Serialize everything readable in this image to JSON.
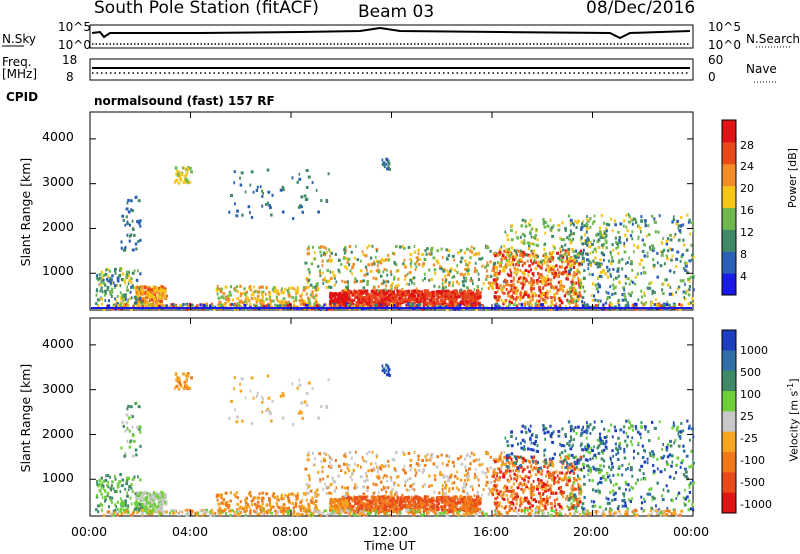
{
  "header": {
    "station": "South Pole Station (fitACF)",
    "beam": "Beam 03",
    "date": "08/Dec/2016"
  },
  "mini_panels": {
    "nsky_label": "N.Sky",
    "nsky_ticks": [
      "10^5",
      "10^0"
    ],
    "nsearch_label": "N.Search",
    "nsearch_ticks": [
      "10^5",
      "10^0"
    ],
    "freq_label": "Freq.",
    "freq_unit": "[MHz]",
    "freq_ticks": [
      "18",
      "8"
    ],
    "nave_label": "Nave",
    "nave_ticks": [
      "60",
      "0"
    ],
    "cpid_label": "CPID",
    "cpid_value": "normalsound (fast) 157 RF"
  },
  "chart_data": [
    {
      "type": "heatmap",
      "title": "",
      "xlabel": "Time UT",
      "ylabel": "Slant Range [km]",
      "x_ticks": [
        "00:00",
        "04:00",
        "08:00",
        "12:00",
        "16:00",
        "20:00",
        "00:00"
      ],
      "y_ticks": [
        "1000",
        "2000",
        "3000",
        "4000"
      ],
      "ylim": [
        180,
        4600
      ],
      "colorbar": {
        "label": "Power [dB]",
        "ticks": [
          "4",
          "8",
          "12",
          "16",
          "20",
          "24",
          "28"
        ],
        "colors": [
          "#1a1ae6",
          "#2a5fb3",
          "#3f8a66",
          "#6fb84f",
          "#f5c518",
          "#f28c28",
          "#e84a1c",
          "#e01414"
        ]
      }
    },
    {
      "type": "heatmap",
      "title": "",
      "xlabel": "Time UT",
      "ylabel": "Slant Range [km]",
      "x_ticks": [
        "00:00",
        "04:00",
        "08:00",
        "12:00",
        "16:00",
        "20:00",
        "00:00"
      ],
      "y_ticks": [
        "1000",
        "2000",
        "3000",
        "4000"
      ],
      "ylim": [
        180,
        4600
      ],
      "colorbar": {
        "label": "Velocity [m s",
        "label_sup": "-1",
        "label_end": "]",
        "ticks": [
          "1000",
          "500",
          "100",
          "25",
          "-25",
          "-100",
          "-500",
          "-1000"
        ],
        "colors": [
          "#1d3fbf",
          "#2f6fa8",
          "#3f8a66",
          "#6fcf3a",
          "#c8c8c8",
          "#f5a623",
          "#f07a1a",
          "#e84a1c",
          "#e01414"
        ]
      }
    }
  ]
}
